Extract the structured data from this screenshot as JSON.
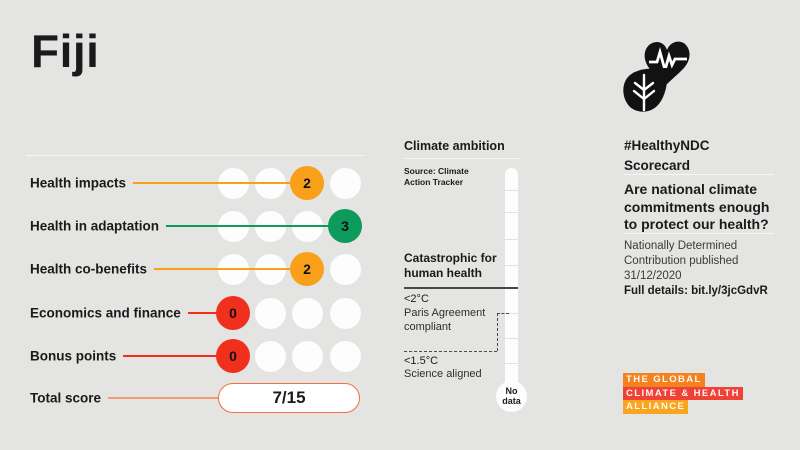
{
  "title": "Fiji",
  "colors": {
    "background": "#e4e4e2",
    "orange": "#f9a01b",
    "green": "#0d9b5c",
    "red": "#f0301d",
    "salmon": "#f59b7a",
    "pill_border": "#f2703f",
    "alliance_orange": "#f58220",
    "alliance_red": "#ef4136",
    "alliance_amber": "#f9a51d",
    "ink": "#1a1a1a"
  },
  "chart_data": {
    "type": "table",
    "title": "#HealthyNDC Scorecard — Fiji",
    "categories": [
      "Health impacts",
      "Health in adaptation",
      "Health co-benefits",
      "Economics and finance",
      "Bonus points"
    ],
    "values": [
      2,
      3,
      2,
      0,
      0
    ],
    "value_range": [
      0,
      3
    ],
    "total_label": "Total score",
    "total_value": "7/15",
    "climate_ambition_value": "No data",
    "climate_ambition_scale": [
      "Catastrophic for human health",
      "<2°C Paris Agreement compliant",
      "<1.5°C Science aligned"
    ]
  },
  "scorecard": {
    "rows": [
      {
        "label": "Health impacts",
        "score": 2,
        "color": "orange"
      },
      {
        "label": "Health in adaptation",
        "score": 3,
        "color": "green"
      },
      {
        "label": "Health co-benefits",
        "score": 2,
        "color": "orange"
      },
      {
        "label": "Economics and finance",
        "score": 0,
        "color": "red"
      },
      {
        "label": "Bonus points",
        "score": 0,
        "color": "red"
      }
    ],
    "total": {
      "label": "Total score",
      "value": "7/15"
    }
  },
  "ambition": {
    "title": "Climate ambition",
    "source": "Source: Climate Action Tracker",
    "catastrophic": "Catastrophic for human health",
    "two_deg": "<2°C",
    "two_deg_desc": "Paris Agreement compliant",
    "one_five": "<1.5°C",
    "one_five_desc": "Science aligned",
    "no_data": "No data"
  },
  "right_panel": {
    "hashtag_line1": "#HealthyNDC",
    "hashtag_line2": "Scorecard",
    "question": "Are national climate commitments enough to protect our health?",
    "ndc_published": "Nationally Determined Contribution published 31/12/2020",
    "full_details": "Full details: bit.ly/3jcGdvR",
    "alliance_lines": [
      "THE GLOBAL",
      "CLIMATE & HEALTH",
      "ALLIANCE"
    ]
  },
  "icons": {
    "logo": "heart-heartbeat-leaf-icon"
  }
}
